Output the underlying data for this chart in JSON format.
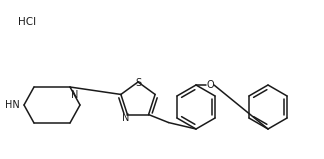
{
  "background_color": "#ffffff",
  "line_color": "#1a1a1a",
  "text_color": "#1a1a1a",
  "hcl_label": "HCl",
  "nh_label": "HN",
  "n_label": "N",
  "s_label": "S",
  "n2_label": "N",
  "o_label": "O",
  "linewidth": 1.1,
  "fontsize": 7.0
}
